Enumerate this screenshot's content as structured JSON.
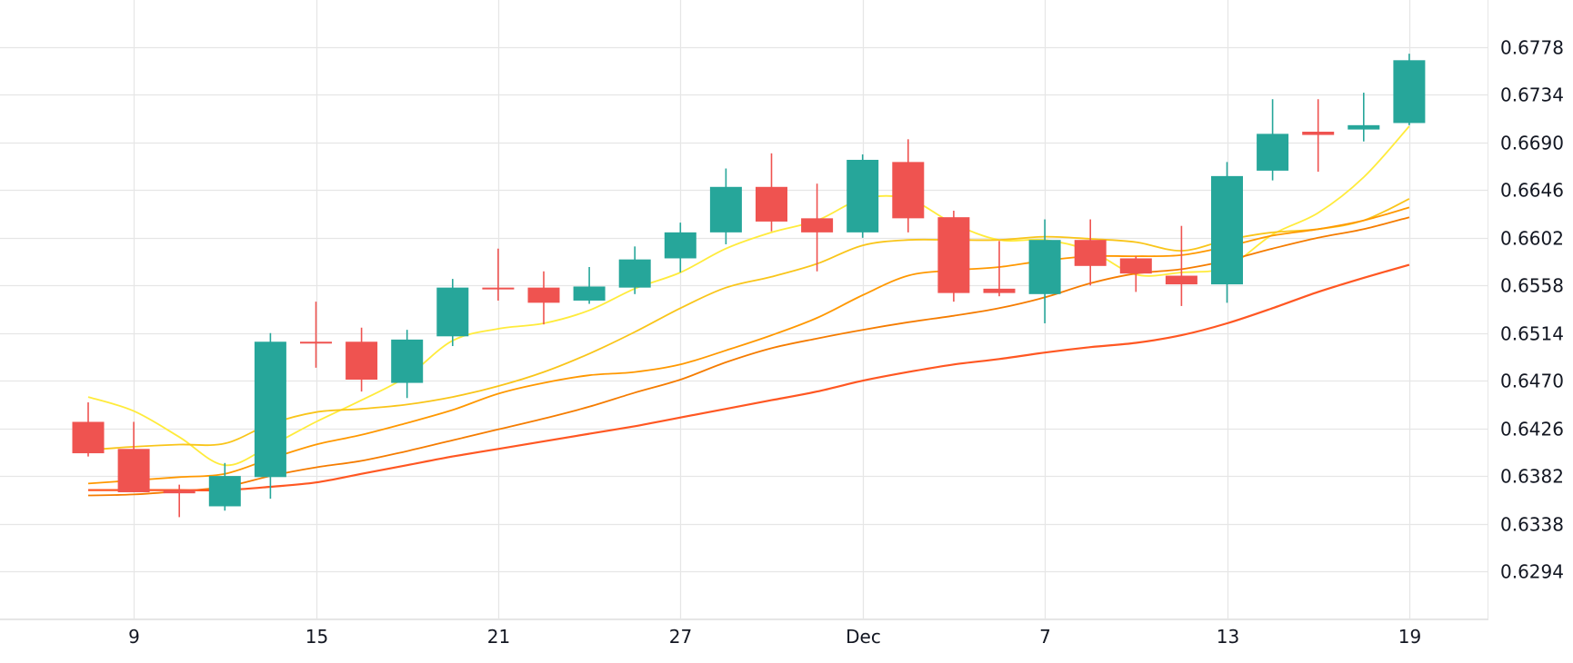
{
  "chart_data": {
    "type": "candlestick",
    "colors": {
      "up": "#26a69a",
      "down": "#ef5350",
      "grid": "#e6e6e6",
      "text": "#131722",
      "ma": [
        "#ffeb3b",
        "#f9c51a",
        "#ff9800",
        "#f57c00",
        "#ff5722"
      ]
    },
    "x_ticks": [
      {
        "label": "9",
        "index": 1
      },
      {
        "label": "15",
        "index": 5
      },
      {
        "label": "21",
        "index": 9
      },
      {
        "label": "27",
        "index": 13
      },
      {
        "label": "Dec",
        "index": 17
      },
      {
        "label": "7",
        "index": 21
      },
      {
        "label": "13",
        "index": 25
      },
      {
        "label": "19",
        "index": 29
      }
    ],
    "y_ticks": [
      "0.6778",
      "0.6734",
      "0.6690",
      "0.6646",
      "0.6602",
      "0.6558",
      "0.6514",
      "0.6470",
      "0.6426",
      "0.6382",
      "0.6338",
      "0.6294"
    ],
    "ylim": [
      0.6256,
      0.6817
    ],
    "grid": true,
    "candles": [
      {
        "open": 0.6432,
        "high": 0.645,
        "low": 0.64,
        "close": 0.6403
      },
      {
        "open": 0.6407,
        "high": 0.6432,
        "low": 0.6367,
        "close": 0.6367
      },
      {
        "open": 0.6369,
        "high": 0.6374,
        "low": 0.6344,
        "close": 0.6366
      },
      {
        "open": 0.6354,
        "high": 0.6394,
        "low": 0.635,
        "close": 0.6382
      },
      {
        "open": 0.6381,
        "high": 0.6514,
        "low": 0.6361,
        "close": 0.6506
      },
      {
        "open": 0.6506,
        "high": 0.6543,
        "low": 0.6482,
        "close": 0.6505
      },
      {
        "open": 0.6506,
        "high": 0.6519,
        "low": 0.646,
        "close": 0.6471
      },
      {
        "open": 0.6468,
        "high": 0.6517,
        "low": 0.6454,
        "close": 0.6508
      },
      {
        "open": 0.6511,
        "high": 0.6564,
        "low": 0.6502,
        "close": 0.6556
      },
      {
        "open": 0.6556,
        "high": 0.6592,
        "low": 0.6544,
        "close": 0.6555
      },
      {
        "open": 0.6556,
        "high": 0.6571,
        "low": 0.6522,
        "close": 0.6542
      },
      {
        "open": 0.6544,
        "high": 0.6575,
        "low": 0.6541,
        "close": 0.6557
      },
      {
        "open": 0.6556,
        "high": 0.6594,
        "low": 0.655,
        "close": 0.6582
      },
      {
        "open": 0.6583,
        "high": 0.6616,
        "low": 0.657,
        "close": 0.6607
      },
      {
        "open": 0.6607,
        "high": 0.6666,
        "low": 0.6596,
        "close": 0.6649
      },
      {
        "open": 0.6649,
        "high": 0.668,
        "low": 0.6608,
        "close": 0.6617
      },
      {
        "open": 0.662,
        "high": 0.6652,
        "low": 0.6571,
        "close": 0.6607
      },
      {
        "open": 0.6607,
        "high": 0.6679,
        "low": 0.6602,
        "close": 0.6674
      },
      {
        "open": 0.6672,
        "high": 0.6693,
        "low": 0.6607,
        "close": 0.662
      },
      {
        "open": 0.6621,
        "high": 0.6627,
        "low": 0.6543,
        "close": 0.6551
      },
      {
        "open": 0.6555,
        "high": 0.6599,
        "low": 0.6548,
        "close": 0.6551
      },
      {
        "open": 0.655,
        "high": 0.6619,
        "low": 0.6523,
        "close": 0.66
      },
      {
        "open": 0.66,
        "high": 0.6619,
        "low": 0.6558,
        "close": 0.6576
      },
      {
        "open": 0.6583,
        "high": 0.6585,
        "low": 0.6552,
        "close": 0.6569
      },
      {
        "open": 0.6567,
        "high": 0.6613,
        "low": 0.6539,
        "close": 0.6559
      },
      {
        "open": 0.6559,
        "high": 0.6672,
        "low": 0.6542,
        "close": 0.6659
      },
      {
        "open": 0.6664,
        "high": 0.673,
        "low": 0.6655,
        "close": 0.6698
      },
      {
        "open": 0.67,
        "high": 0.673,
        "low": 0.6663,
        "close": 0.6697
      },
      {
        "open": 0.6702,
        "high": 0.6736,
        "low": 0.6691,
        "close": 0.6706
      },
      {
        "open": 0.6708,
        "high": 0.6772,
        "low": 0.6706,
        "close": 0.6766
      }
    ],
    "moving_averages": [
      [
        0.6455,
        0.6442,
        0.6418,
        0.6392,
        0.641,
        0.6432,
        0.6452,
        0.6474,
        0.6507,
        0.6518,
        0.6523,
        0.6535,
        0.6555,
        0.657,
        0.6592,
        0.6607,
        0.6618,
        0.6638,
        0.6638,
        0.6615,
        0.66,
        0.66,
        0.659,
        0.6568,
        0.657,
        0.6575,
        0.6605,
        0.6625,
        0.6658,
        0.6705
      ],
      [
        0.6406,
        0.6409,
        0.6411,
        0.6412,
        0.643,
        0.6441,
        0.6444,
        0.6448,
        0.6455,
        0.6465,
        0.6478,
        0.6495,
        0.6515,
        0.6537,
        0.6556,
        0.6566,
        0.6578,
        0.6595,
        0.66,
        0.66,
        0.66,
        0.6603,
        0.6601,
        0.6598,
        0.659,
        0.66,
        0.6607,
        0.661,
        0.6618,
        0.6638
      ],
      [
        0.6375,
        0.6378,
        0.6381,
        0.6384,
        0.6398,
        0.6411,
        0.642,
        0.6431,
        0.6443,
        0.6458,
        0.6468,
        0.6475,
        0.6478,
        0.6485,
        0.6498,
        0.6512,
        0.6528,
        0.6549,
        0.6567,
        0.6572,
        0.6575,
        0.6581,
        0.6585,
        0.6585,
        0.6586,
        0.6594,
        0.6604,
        0.661,
        0.6618,
        0.663
      ],
      [
        0.6364,
        0.6365,
        0.6368,
        0.6372,
        0.6382,
        0.639,
        0.6396,
        0.6405,
        0.6415,
        0.6425,
        0.6435,
        0.6446,
        0.6459,
        0.6471,
        0.6487,
        0.65,
        0.6509,
        0.6517,
        0.6524,
        0.653,
        0.6537,
        0.6547,
        0.656,
        0.6569,
        0.6573,
        0.6581,
        0.6592,
        0.6602,
        0.661,
        0.6621
      ],
      [
        0.6369,
        0.6369,
        0.6369,
        0.6369,
        0.6372,
        0.6376,
        0.6384,
        0.6392,
        0.64,
        0.6407,
        0.6414,
        0.6421,
        0.6428,
        0.6436,
        0.6444,
        0.6452,
        0.646,
        0.647,
        0.6478,
        0.6485,
        0.649,
        0.6496,
        0.6501,
        0.6505,
        0.6512,
        0.6523,
        0.6537,
        0.6552,
        0.6565,
        0.6577
      ]
    ]
  }
}
